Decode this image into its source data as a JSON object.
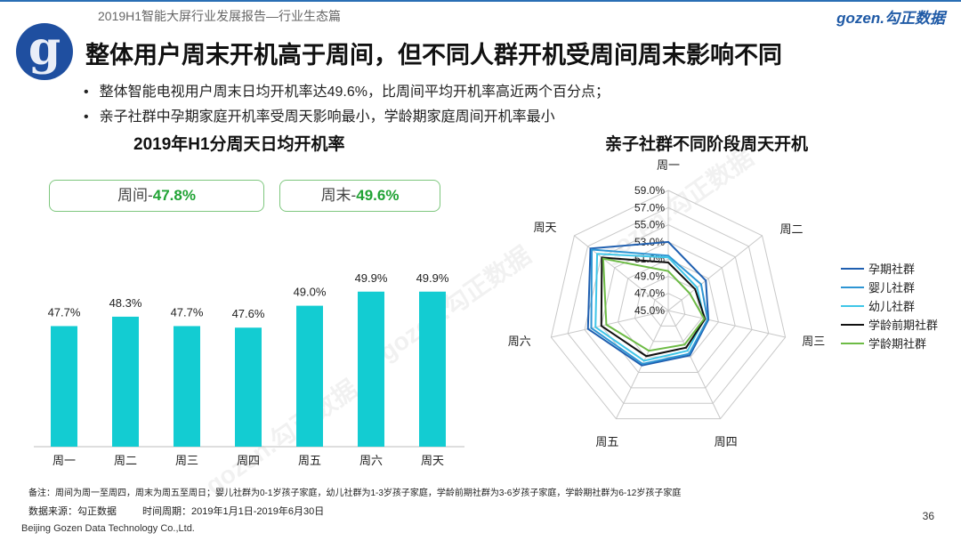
{
  "header": {
    "report_title": "2019H1智能大屏行业发展报告—行业生态篇",
    "brand_main": "gozen.",
    "brand_cn": "勾正数据",
    "logo_letter": "g"
  },
  "title": "整体用户周末开机高于周间，但不同人群开机受周间周末影响不同",
  "bullets": [
    "整体智能电视用户周末日均开机率达49.6%，比周间平均开机率高近两个百分点；",
    "亲子社群中孕期家庭开机率受周天影响最小，学龄期家庭周间开机率最小"
  ],
  "summary": {
    "weekday_label": "周间-",
    "weekday_value": "47.8%",
    "weekend_label": "周末-",
    "weekend_value": "49.6%"
  },
  "watermark": "gozen.勾正数据",
  "chart_data": [
    {
      "type": "bar",
      "title": "2019年H1分周天日均开机率",
      "categories": [
        "周一",
        "周二",
        "周三",
        "周四",
        "周五",
        "周六",
        "周天"
      ],
      "values": [
        47.7,
        48.3,
        47.7,
        47.6,
        49.0,
        49.9,
        49.9
      ],
      "data_labels": [
        "47.7%",
        "48.3%",
        "47.7%",
        "47.6%",
        "49.0%",
        "49.9%",
        "49.9%"
      ],
      "ylim": [
        40,
        51
      ],
      "color": "#13ccd2"
    },
    {
      "type": "radar",
      "title": "亲子社群不同阶段周天开机",
      "axes": [
        "周一",
        "周二",
        "周三",
        "周四",
        "周五",
        "周六",
        "周天"
      ],
      "range": [
        45.0,
        59.0
      ],
      "tick_labels": [
        "45.0%",
        "47.0%",
        "49.0%",
        "51.0%",
        "53.0%",
        "55.0%",
        "57.0%",
        "59.0%"
      ],
      "series": [
        {
          "name": "孕期社群",
          "color": "#1f5fb0",
          "values": [
            53.0,
            50.6,
            49.8,
            50.8,
            52.1,
            54.6,
            56.6
          ]
        },
        {
          "name": "婴儿社群",
          "color": "#2e95d3",
          "values": [
            51.4,
            49.9,
            49.7,
            50.6,
            51.9,
            54.2,
            56.4
          ]
        },
        {
          "name": "幼儿社群",
          "color": "#3fc6e8",
          "values": [
            51.2,
            49.3,
            49.3,
            50.2,
            51.5,
            53.7,
            55.6
          ]
        },
        {
          "name": "学龄前期社群",
          "color": "#111111",
          "values": [
            50.6,
            49.0,
            49.4,
            49.8,
            50.9,
            53.0,
            54.9
          ]
        },
        {
          "name": "学龄期社群",
          "color": "#6dbb45",
          "values": [
            49.6,
            48.2,
            49.3,
            49.4,
            50.2,
            52.4,
            54.7
          ]
        }
      ]
    }
  ],
  "footer": {
    "note": "备注：周间为周一至周四，周末为周五至周日；婴儿社群为0-1岁孩子家庭，幼儿社群为1-3岁孩子家庭，学龄前期社群为3-6岁孩子家庭，学龄期社群为6-12岁孩子家庭",
    "source": "数据来源：勾正数据",
    "period": "时间周期：2019年1月1日-2019年6月30日",
    "company": "Beijing Gozen Data Technology Co.,Ltd.",
    "page": "36"
  }
}
